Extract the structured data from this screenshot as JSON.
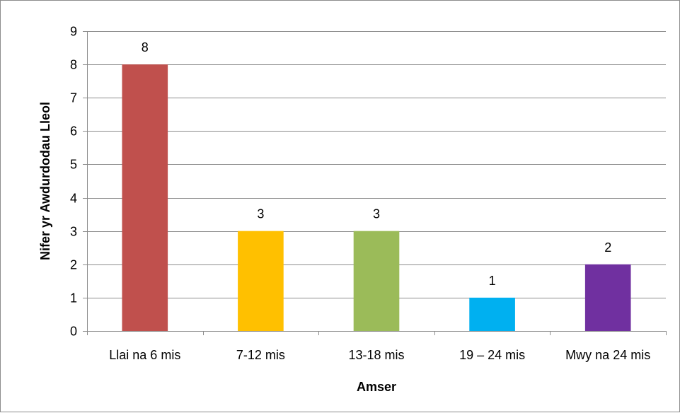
{
  "chart_data": {
    "type": "bar",
    "categories": [
      "Llai na 6 mis",
      "7-12 mis",
      "13-18 mis",
      "19 – 24 mis",
      "Mwy na 24 mis"
    ],
    "values": [
      8,
      3,
      3,
      1,
      2
    ],
    "colors": [
      "#c0504d",
      "#ffc000",
      "#9bbb59",
      "#00b0f0",
      "#7030a0"
    ],
    "title": "",
    "xlabel": "Amser",
    "ylabel": "Nifer yr Awdurdodau Lleol",
    "ylim": [
      0,
      9
    ],
    "yticks": [
      0,
      1,
      2,
      3,
      4,
      5,
      6,
      7,
      8,
      9
    ],
    "grid": true,
    "data_labels": true,
    "legend": "none"
  }
}
